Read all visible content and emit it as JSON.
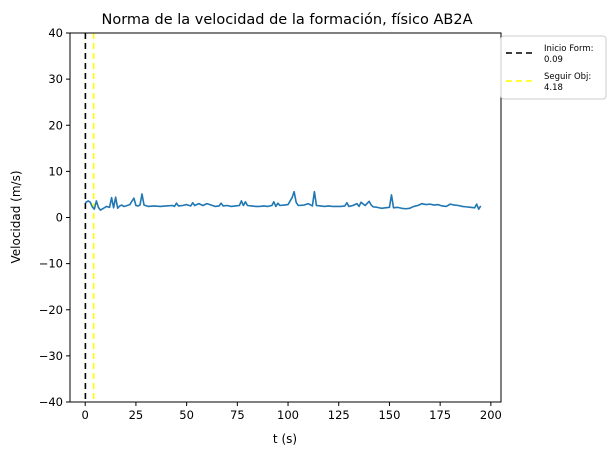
{
  "chart_data": {
    "type": "line",
    "title": "Norma de la velocidad de la formación, físico AB2A",
    "xlabel": "t (s)",
    "ylabel": "Velocidad (m/s)",
    "xlim": [
      -7.5,
      205
    ],
    "ylim": [
      -40,
      40
    ],
    "xticks": [
      0,
      25,
      50,
      75,
      100,
      125,
      150,
      175,
      200
    ],
    "yticks": [
      -40,
      -30,
      -20,
      -10,
      0,
      10,
      20,
      30,
      40
    ],
    "xtick_labels": [
      "0",
      "25",
      "50",
      "75",
      "100",
      "125",
      "150",
      "175",
      "200"
    ],
    "ytick_labels": [
      "−40",
      "−30",
      "−20",
      "−10",
      "0",
      "10",
      "20",
      "30",
      "40"
    ],
    "legend_position": "outside-top-right",
    "vlines": [
      {
        "name": "Inicio Form:",
        "value_label": "0.09",
        "x": 0.09,
        "color": "#000000",
        "style": "dashed"
      },
      {
        "name": "Seguir Obj:",
        "value_label": "4.18",
        "x": 4.18,
        "color": "#ffff00",
        "style": "dashed"
      }
    ],
    "series": [
      {
        "name": "velocidad",
        "color": "#1f77b4",
        "x": [
          0.0,
          1.5,
          2.5,
          3.5,
          4.5,
          5.5,
          6.5,
          7.5,
          9,
          10.5,
          12,
          13,
          14,
          15,
          16,
          17,
          18,
          19,
          20,
          22,
          24,
          25,
          26,
          27,
          28,
          29,
          31,
          34,
          37,
          40,
          43,
          44,
          45,
          46,
          48,
          50,
          52,
          53,
          54,
          56,
          58,
          60,
          62,
          64,
          66,
          67,
          68,
          70,
          72,
          74,
          76,
          77,
          78,
          79,
          80,
          82,
          84,
          86,
          88,
          90,
          92,
          93,
          94,
          95,
          96,
          98,
          100,
          102,
          103,
          104,
          105,
          108,
          110,
          112,
          113,
          114,
          116,
          118,
          120,
          122,
          124,
          126,
          128,
          129,
          130,
          132,
          134,
          135,
          136,
          138,
          140,
          141,
          142,
          144,
          146,
          148,
          150,
          151,
          152,
          154,
          156,
          158,
          160,
          162,
          164,
          166,
          168,
          170,
          172,
          174,
          176,
          178,
          180,
          182,
          184,
          186,
          188,
          190,
          192,
          193,
          194,
          195
        ],
        "y": [
          3.2,
          3.6,
          3.3,
          2.3,
          1.8,
          3.6,
          2.2,
          1.6,
          2.0,
          2.4,
          2.2,
          4.3,
          2.1,
          4.4,
          2.0,
          2.5,
          2.7,
          2.4,
          2.5,
          2.8,
          4.2,
          2.6,
          2.5,
          2.7,
          5.1,
          2.7,
          2.4,
          2.5,
          2.4,
          2.5,
          2.6,
          2.4,
          3.1,
          2.5,
          2.6,
          2.8,
          2.5,
          3.2,
          2.6,
          3.0,
          2.6,
          3.0,
          2.7,
          2.4,
          2.5,
          3.1,
          2.5,
          2.6,
          2.4,
          2.5,
          2.6,
          3.6,
          2.6,
          3.4,
          2.6,
          2.5,
          2.4,
          2.4,
          2.5,
          2.4,
          2.6,
          3.4,
          2.4,
          3.1,
          2.6,
          2.7,
          2.8,
          4.3,
          5.6,
          3.3,
          2.6,
          2.7,
          3.0,
          2.5,
          5.6,
          2.6,
          2.5,
          2.4,
          2.5,
          2.4,
          2.4,
          2.4,
          2.5,
          3.2,
          2.4,
          2.6,
          3.0,
          2.4,
          3.3,
          2.6,
          3.5,
          2.7,
          2.3,
          2.2,
          2.0,
          2.1,
          2.2,
          4.9,
          2.1,
          2.2,
          2.0,
          1.9,
          2.0,
          2.4,
          2.6,
          3.0,
          2.8,
          2.9,
          2.7,
          2.8,
          2.5,
          2.4,
          2.9,
          2.7,
          2.6,
          2.4,
          2.3,
          2.2,
          2.1,
          2.9,
          1.8,
          2.5
        ]
      }
    ]
  }
}
